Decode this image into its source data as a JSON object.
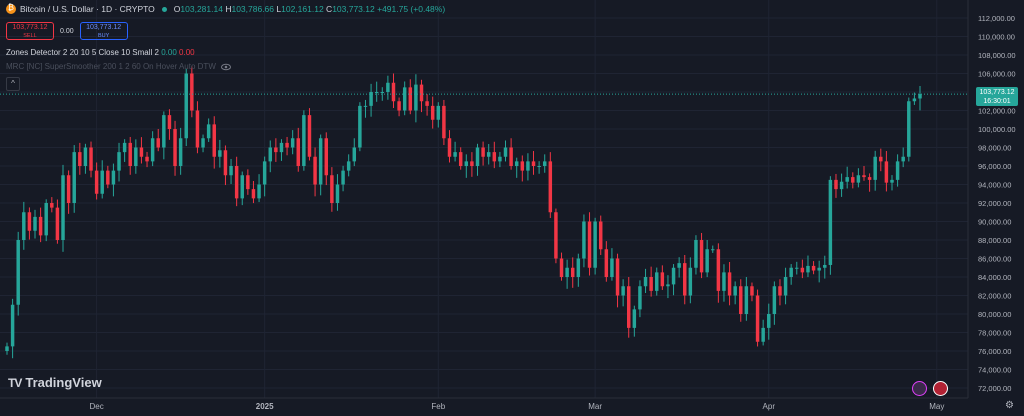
{
  "symbol": {
    "title": "Bitcoin / U.S. Dollar · 1D · CRYPTO",
    "open": "103,281.14",
    "high": "103,786.66",
    "low": "102,161.12",
    "close": "103,773.12",
    "change": "+491.75 (+0.48%)",
    "o_label": "O",
    "h_label": "H",
    "l_label": "L",
    "c_label": "C"
  },
  "trade": {
    "sell_price": "103,773.12",
    "sell_label": "SELL",
    "spread": "0.00",
    "buy_price": "103,773.12",
    "buy_label": "BUY"
  },
  "indicators": {
    "zones_label": "Zones Detector 2 20 10 5 Close 10 Small 2",
    "zones_v1": "0.00",
    "zones_v2": "0.00",
    "smoother_label": "MRC [NC] SuperSmoother 200 1 2 60 On Hover Auto DTW"
  },
  "price_box": {
    "price": "103,773.12",
    "countdown": "16:30:01"
  },
  "branding": {
    "logo_text": "TradingView",
    "logo_mark": "TV"
  },
  "colors": {
    "up": "#26a69a",
    "down": "#f23645",
    "bg": "#161a25",
    "grid": "#1f2433",
    "axis_text": "#b2b5be"
  },
  "icons": [
    "bitcoin-icon",
    "eye-icon",
    "collapse-arrow-icon",
    "settings-icon",
    "flag-icon",
    "alert-icon"
  ],
  "chart_data": {
    "type": "candlestick",
    "y_ticks": [
      "112,000.00",
      "110,000.00",
      "108,000.00",
      "106,000.00",
      "104,000.00",
      "102,000.00",
      "100,000.00",
      "98,000.00",
      "96,000.00",
      "94,000.00",
      "92,000.00",
      "90,000.00",
      "88,000.00",
      "86,000.00",
      "84,000.00",
      "82,000.00",
      "80,000.00",
      "78,000.00",
      "76,000.00",
      "74,000.00",
      "72,000.00"
    ],
    "y_tick_values": [
      112000,
      110000,
      108000,
      106000,
      104000,
      102000,
      100000,
      98000,
      96000,
      94000,
      92000,
      90000,
      88000,
      86000,
      84000,
      82000,
      80000,
      78000,
      76000,
      74000,
      72000
    ],
    "ylim": [
      71000,
      113000
    ],
    "x_ticks": [
      "Dec",
      "2025",
      "Feb",
      "Mar",
      "Apr",
      "May"
    ],
    "x_tick_index": [
      16,
      46,
      77,
      105,
      136,
      166
    ],
    "last_price": 103773.12,
    "closes": [
      76500,
      81000,
      88000,
      91000,
      89000,
      90500,
      88500,
      92000,
      91500,
      88000,
      95000,
      92000,
      97500,
      96000,
      98000,
      95500,
      93000,
      95500,
      94000,
      95500,
      97500,
      98500,
      96000,
      98000,
      97000,
      96500,
      99000,
      98000,
      101500,
      100000,
      96000,
      99000,
      106000,
      102000,
      98000,
      99000,
      100500,
      97000,
      97700,
      95000,
      96000,
      92500,
      95000,
      93500,
      92500,
      94000,
      96500,
      98000,
      97500,
      98500,
      98000,
      99000,
      96000,
      101500,
      97000,
      94000,
      99000,
      95000,
      92000,
      94000,
      95500,
      96500,
      98000,
      102500,
      102500,
      104000,
      104000,
      104000,
      105000,
      103000,
      102000,
      104500,
      102000,
      104800,
      103000,
      102500,
      101000,
      102500,
      99000,
      97000,
      97500,
      96000,
      96500,
      96000,
      98000,
      97000,
      97500,
      96500,
      97000,
      98000,
      96000,
      96500,
      95500,
      96500,
      96000,
      96000,
      96500,
      91000,
      86000,
      84000,
      85000,
      84000,
      86000,
      90000,
      85000,
      90000,
      87000,
      84000,
      86000,
      82000,
      83000,
      78500,
      80500,
      83000,
      84000,
      82500,
      84500,
      83000,
      83200,
      85000,
      85500,
      82000,
      85000,
      88000,
      84500,
      87000,
      87000,
      82500,
      84500,
      82000,
      83000,
      80000,
      83000,
      82000,
      77000,
      78500,
      80000,
      83000,
      82000,
      84000,
      85000,
      85000,
      84500,
      85200,
      84700,
      85000,
      85300,
      94500,
      93500,
      94300,
      94800,
      94200,
      95000,
      94800,
      94500,
      97000,
      96500,
      94200,
      94500,
      96500,
      97000,
      103000,
      103300,
      103773
    ]
  }
}
